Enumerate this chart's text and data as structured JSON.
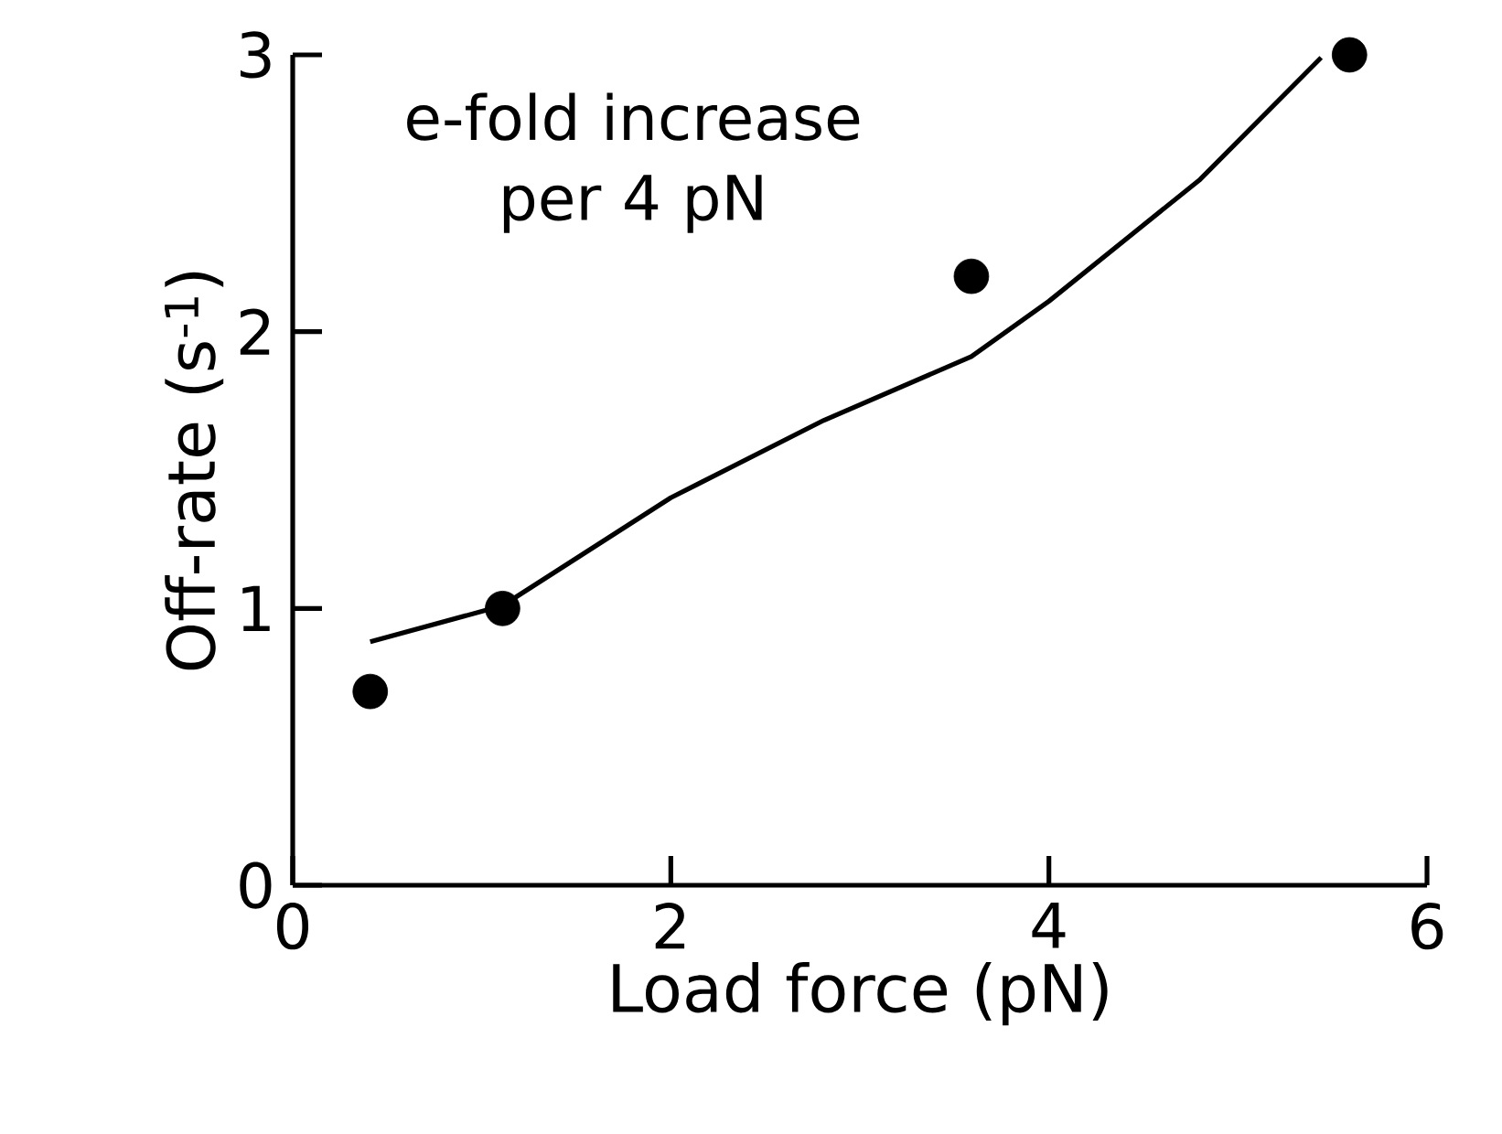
{
  "chart_data": {
    "type": "scatter",
    "xlabel": "Load force (pN)",
    "ylabel": "Off-rate (s$^{-1}$)",
    "annotations": [
      "e-fold increase per 4 pN"
    ],
    "marker": "circle",
    "xlim": [
      0,
      6
    ],
    "ylim": [
      0,
      3
    ],
    "xticks": [
      0,
      2,
      4,
      6
    ],
    "yticks": [
      0,
      1,
      2,
      3
    ],
    "grid": false,
    "series": [
      {
        "type": "scatter",
        "color": "#000000",
        "x": [
          0.41,
          1.11,
          3.59,
          5.59
        ],
        "values": [
          0.7,
          1.0,
          2.2,
          3.0
        ]
      },
      {
        "type": "line",
        "color": "#000000",
        "marker": "none",
        "line_style": "solid",
        "x": [
          0.41,
          1.11,
          2.0,
          2.81,
          3.59,
          4.0,
          4.8,
          5.44
        ],
        "values": [
          0.88,
          1.01,
          1.4,
          1.68,
          1.91,
          2.11,
          2.55,
          2.99
        ]
      }
    ]
  }
}
